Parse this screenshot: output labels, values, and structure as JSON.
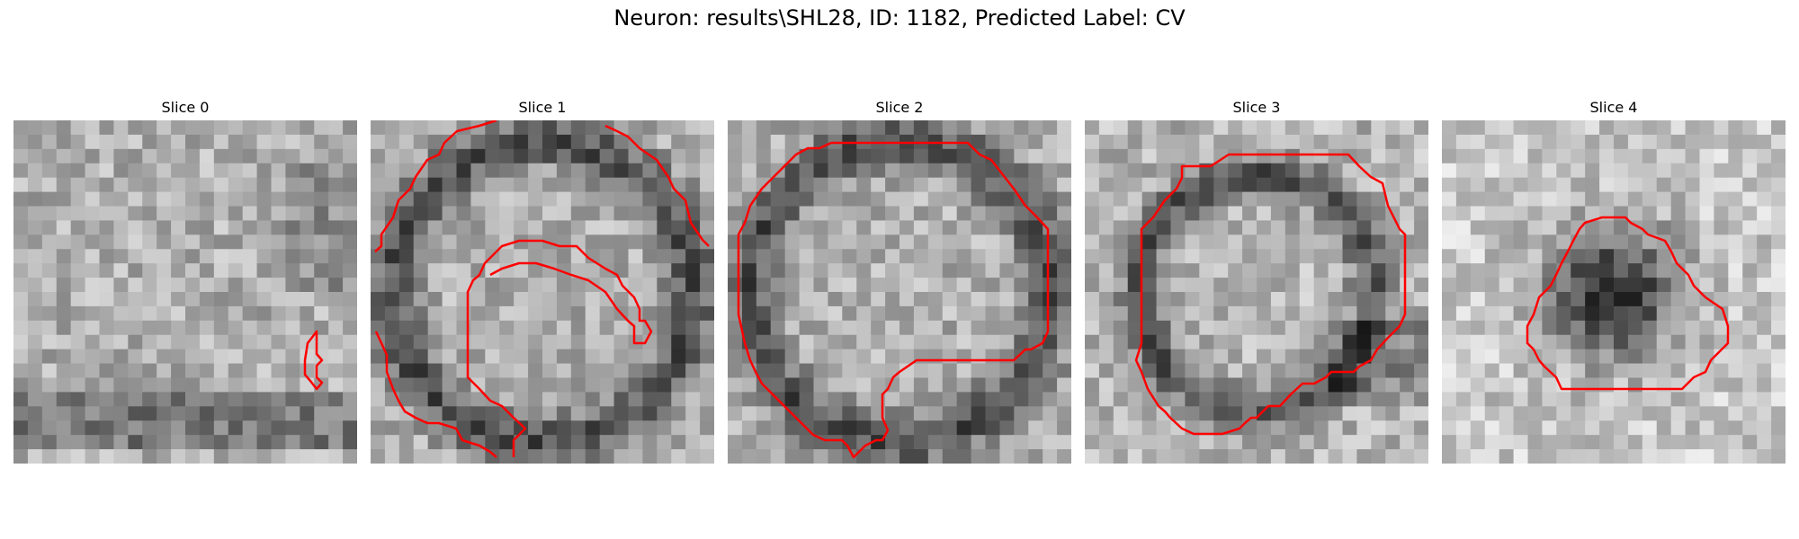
{
  "figure": {
    "title": "Neuron: results\\SHL28, ID: 1182, Predicted Label: CV",
    "panels": [
      {
        "title": "Slice 0",
        "pattern": "dark-ring-bottom",
        "seed": 11,
        "outline_color": "#ff0000"
      },
      {
        "title": "Slice 1",
        "pattern": "ring-large",
        "seed": 23,
        "outline_color": "#ff0000"
      },
      {
        "title": "Slice 2",
        "pattern": "ring-large",
        "seed": 37,
        "outline_color": "#ff0000"
      },
      {
        "title": "Slice 3",
        "pattern": "ring-medium",
        "seed": 41,
        "outline_color": "#ff0000"
      },
      {
        "title": "Slice 4",
        "pattern": "dark-blob",
        "seed": 53,
        "outline_color": "#ff0000"
      }
    ]
  }
}
